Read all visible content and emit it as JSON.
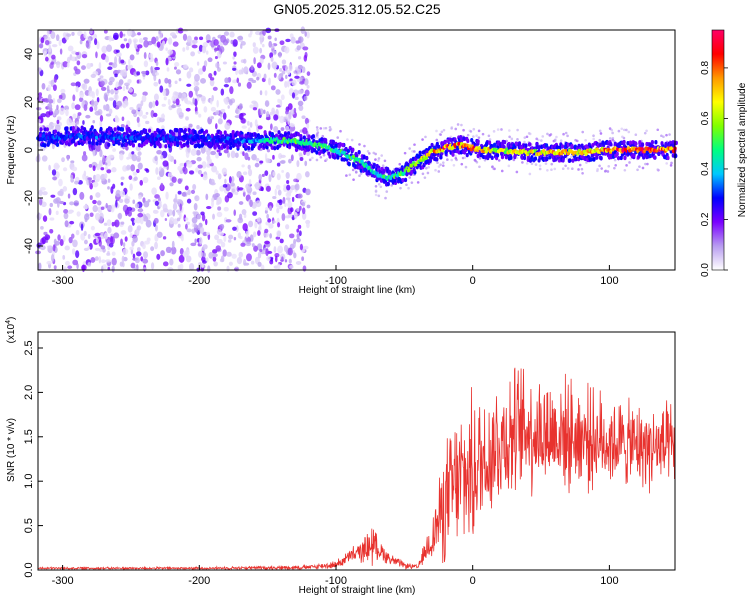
{
  "title": "GN05.2025.312.05.52.C25",
  "chart_data": [
    {
      "type": "heatmap",
      "name": "spectrogram",
      "xlabel": "Height of straight line (km)",
      "ylabel": "Frequency (Hz)",
      "xlim": [
        -318,
        148
      ],
      "ylim": [
        -50,
        50
      ],
      "xticks": [
        -300,
        -200,
        -100,
        0,
        100
      ],
      "xtick_labels": [
        "-300",
        "-200",
        "-100",
        "0",
        "100"
      ],
      "yticks": [
        -40,
        -20,
        0,
        20,
        40
      ],
      "ytick_labels": [
        "-40",
        "-20",
        "0",
        "20",
        "40"
      ],
      "grid": false,
      "ridge": {
        "x": [
          -318,
          -280,
          -240,
          -200,
          -170,
          -140,
          -120,
          -100,
          -85,
          -70,
          -60,
          -50,
          -40,
          -30,
          -20,
          -10,
          0,
          10,
          20,
          40,
          60,
          80,
          100,
          120,
          148
        ],
        "frequency": [
          5,
          6,
          5,
          5,
          4,
          4,
          3,
          0,
          -4,
          -10,
          -12,
          -9,
          -5,
          -1,
          1,
          2,
          1,
          0,
          0,
          -1,
          -1,
          -1,
          0,
          0,
          0
        ],
        "amplitude": [
          0.3,
          0.35,
          0.3,
          0.3,
          0.35,
          0.5,
          0.55,
          0.5,
          0.5,
          0.45,
          0.5,
          0.55,
          0.6,
          0.75,
          0.85,
          0.8,
          0.8,
          0.7,
          0.65,
          0.7,
          0.75,
          0.7,
          0.85,
          0.9,
          0.85
        ]
      },
      "scatter_extent_x": [
        -318,
        -120
      ],
      "colorbar": {
        "label": "Normalized spectral amplitude",
        "range": [
          0,
          0.95
        ],
        "ticks": [
          0.0,
          0.2,
          0.4,
          0.6,
          0.8
        ],
        "tick_labels": [
          "0.0",
          "0.2",
          "0.4",
          "0.6",
          "0.8"
        ],
        "colors": [
          "#ffffff",
          "#b89cf0",
          "#7a00ff",
          "#0000ff",
          "#00c8ff",
          "#00ff80",
          "#80ff00",
          "#ffff00",
          "#ff9900",
          "#ff0000",
          "#ff0066"
        ]
      }
    },
    {
      "type": "line",
      "name": "snr",
      "xlabel": "Height of straight line (km)",
      "ylabel": "SNR (10 * v/v)",
      "multiplier_label": "(x10",
      "multiplier_exponent": "4",
      "multiplier_close": ")",
      "xlim": [
        -318,
        148
      ],
      "ylim": [
        0,
        2.68
      ],
      "xticks": [
        -300,
        -200,
        -100,
        0,
        100
      ],
      "xtick_labels": [
        "-300",
        "-200",
        "-100",
        "0",
        "100"
      ],
      "yticks": [
        0.0,
        0.5,
        1.0,
        1.5,
        2.0,
        2.5
      ],
      "ytick_labels": [
        "0.0",
        "0.5",
        "1.0",
        "1.5",
        "2.0",
        "2.5"
      ],
      "color": "#e8322e",
      "grid": false,
      "envelope": {
        "x": [
          -318,
          -200,
          -120,
          -100,
          -90,
          -80,
          -73,
          -70,
          -60,
          -50,
          -40,
          -35,
          -30,
          -25,
          -20,
          -15,
          -10,
          -5,
          0,
          10,
          20,
          30,
          40,
          50,
          60,
          80,
          100,
          120,
          148
        ],
        "mean": [
          0.02,
          0.02,
          0.03,
          0.06,
          0.15,
          0.22,
          0.3,
          0.25,
          0.12,
          0.05,
          0.03,
          0.2,
          0.35,
          0.55,
          0.75,
          0.9,
          1.0,
          1.05,
          1.1,
          1.3,
          1.45,
          1.55,
          1.6,
          1.55,
          1.55,
          1.5,
          1.45,
          1.4,
          1.35
        ],
        "spread": [
          0.015,
          0.015,
          0.03,
          0.05,
          0.1,
          0.15,
          0.3,
          0.15,
          0.08,
          0.04,
          0.03,
          0.15,
          0.3,
          0.5,
          0.8,
          0.9,
          0.9,
          1.0,
          1.0,
          0.9,
          0.9,
          0.85,
          0.85,
          0.8,
          0.75,
          0.7,
          0.6,
          0.55,
          0.6
        ]
      }
    }
  ]
}
